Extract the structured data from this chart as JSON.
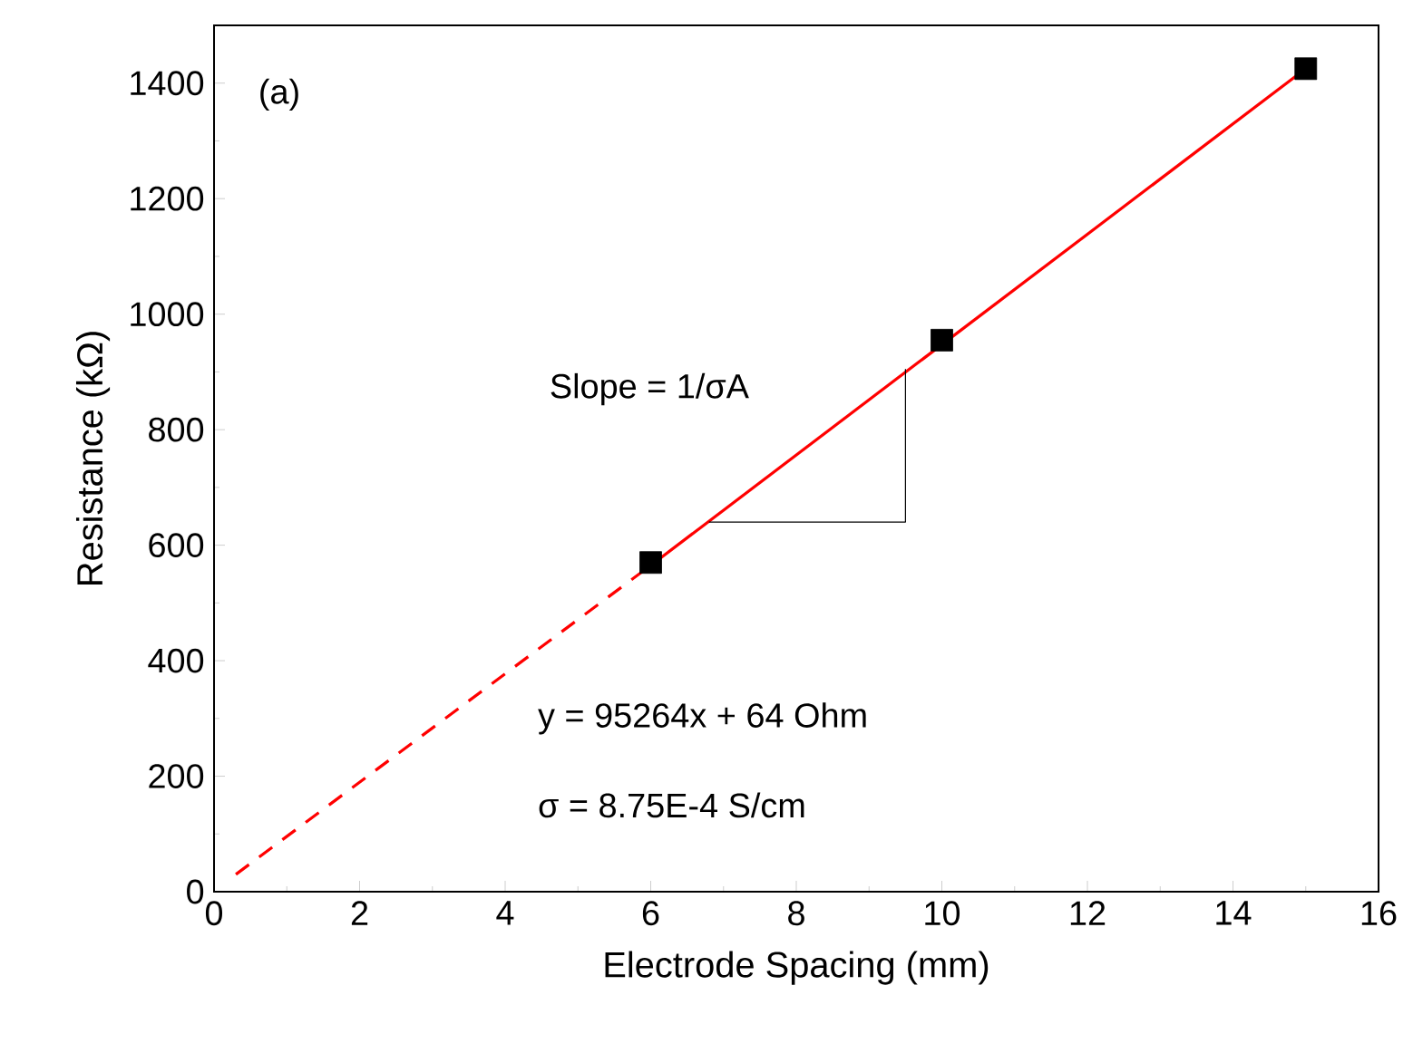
{
  "chart_data": {
    "type": "scatter",
    "xlabel": "Electrode Spacing (mm)",
    "ylabel": "Resistance (kΩ)",
    "annotations": [
      "(a)",
      "Slope = 1/σA",
      "y = 95264x + 64 Ohm",
      "σ = 8.75E-4 S/cm"
    ],
    "xlim": [
      0,
      16
    ],
    "xticks": [
      0,
      2,
      4,
      6,
      8,
      10,
      12,
      14,
      16
    ],
    "ylim": [
      0,
      1500
    ],
    "yticks": [
      0,
      200,
      400,
      600,
      800,
      1000,
      1200,
      1400
    ],
    "series": [
      {
        "type": "line",
        "color": "#ff0000",
        "line_style": "dashed",
        "x": [
          0.3,
          6
        ],
        "values": [
          30,
          565
        ]
      },
      {
        "type": "line",
        "color": "#ff0000",
        "line_style": "solid",
        "x": [
          6,
          15
        ],
        "values": [
          565,
          1425
        ]
      },
      {
        "type": "line",
        "color": "#000000",
        "line_style": "solid",
        "x": [
          6.8,
          9.5,
          9.5
        ],
        "values": [
          640,
          640,
          905
        ]
      },
      {
        "color": "#000000",
        "marker": "square",
        "x": [
          6,
          10,
          15
        ],
        "values": [
          570,
          955,
          1425
        ]
      }
    ]
  }
}
